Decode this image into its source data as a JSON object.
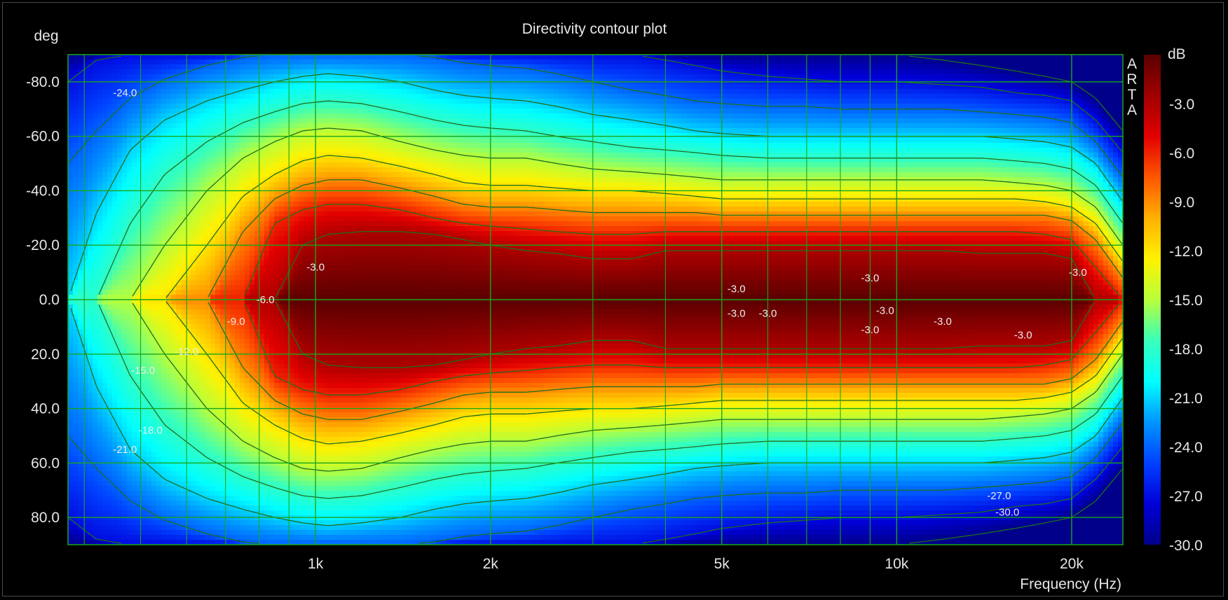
{
  "chart_data": {
    "type": "heatmap",
    "title": "Directivity contour plot",
    "ylabel": "deg",
    "xlabel": "Frequency (Hz)",
    "watermark": "ARTA",
    "x_scale": "log",
    "xlim": [
      375,
      24500
    ],
    "ylim": [
      -90,
      90
    ],
    "y_direction": "top-is-negative",
    "x_ticks": [
      {
        "value": 1000,
        "label": "1k"
      },
      {
        "value": 2000,
        "label": "2k"
      },
      {
        "value": 5000,
        "label": "5k"
      },
      {
        "value": 10000,
        "label": "10k"
      },
      {
        "value": 20000,
        "label": "20k"
      }
    ],
    "x_minor_gridlines": [
      400,
      500,
      600,
      700,
      800,
      900,
      3000,
      4000,
      6000,
      7000,
      8000,
      9000
    ],
    "y_ticks": [
      {
        "value": -80,
        "label": "-80.0"
      },
      {
        "value": -60,
        "label": "-60.0"
      },
      {
        "value": -40,
        "label": "-40.0"
      },
      {
        "value": -20,
        "label": "-20.0"
      },
      {
        "value": 0,
        "label": "0.0"
      },
      {
        "value": 20,
        "label": "20.0"
      },
      {
        "value": 40,
        "label": "40.0"
      },
      {
        "value": 60,
        "label": "60.0"
      },
      {
        "value": 80,
        "label": "80.0"
      }
    ],
    "grid": true,
    "colorbar": {
      "label": "dB",
      "range": [
        -30,
        0
      ],
      "ticks": [
        "-3.0",
        "-6.0",
        "-9.0",
        "-12.0",
        "-15.0",
        "-18.0",
        "-21.0",
        "-24.0",
        "-27.0",
        "-30.0"
      ],
      "colors": [
        "#5a0000",
        "#a00000",
        "#e20000",
        "#ff5500",
        "#ffb000",
        "#fff200",
        "#b8ff3a",
        "#38ffba",
        "#00ffff",
        "#0096ff",
        "#0040ff",
        "#0000d8",
        "#00008a"
      ]
    },
    "beamwidth_profile": {
      "description": "angle (deg) at which response falls to each contour level, per frequency",
      "freqs": [
        375,
        420,
        480,
        550,
        650,
        750,
        850,
        950,
        1050,
        1200,
        1400,
        1600,
        1800,
        2000,
        2300,
        2600,
        3000,
        3500,
        4000,
        4500,
        5000,
        6000,
        7000,
        8000,
        9000,
        10000,
        12000,
        14000,
        16000,
        18000,
        20000,
        22000,
        24500
      ],
      "levels": [
        -3,
        -6,
        -9,
        -12,
        -15,
        -18,
        -21,
        -24,
        -27,
        -30
      ],
      "angles": [
        [
          0,
          0,
          0,
          0,
          0,
          0,
          0,
          20,
          24,
          25,
          25,
          24,
          22,
          20,
          18,
          17,
          15,
          15,
          18,
          18,
          18,
          18,
          18,
          18,
          18,
          18,
          18,
          17,
          17,
          17,
          15,
          0,
          0
        ],
        [
          0,
          0,
          0,
          0,
          0,
          0,
          28,
          33,
          35,
          35,
          33,
          30,
          28,
          27,
          26,
          25,
          24,
          24,
          25,
          25,
          25,
          25,
          25,
          25,
          25,
          25,
          25,
          25,
          25,
          24,
          22,
          12,
          0
        ],
        [
          0,
          0,
          0,
          0,
          0,
          25,
          37,
          42,
          44,
          44,
          41,
          38,
          35,
          34,
          34,
          33,
          32,
          32,
          32,
          32,
          31,
          31,
          31,
          31,
          31,
          31,
          31,
          31,
          31,
          31,
          29,
          22,
          8
        ],
        [
          0,
          0,
          0,
          0,
          20,
          38,
          46,
          51,
          53,
          52,
          49,
          46,
          43,
          42,
          42,
          41,
          40,
          40,
          39,
          38,
          37,
          37,
          37,
          37,
          37,
          37,
          37,
          37,
          37,
          36,
          34,
          28,
          14
        ],
        [
          0,
          0,
          0,
          20,
          40,
          52,
          58,
          62,
          63,
          62,
          58,
          55,
          53,
          52,
          52,
          50,
          48,
          47,
          46,
          45,
          44,
          44,
          44,
          44,
          44,
          44,
          44,
          44,
          43,
          42,
          40,
          34,
          20
        ],
        [
          0,
          0,
          28,
          46,
          58,
          65,
          69,
          72,
          73,
          72,
          69,
          66,
          64,
          63,
          62,
          60,
          58,
          56,
          55,
          54,
          53,
          52,
          52,
          52,
          52,
          52,
          52,
          52,
          51,
          50,
          48,
          42,
          28
        ],
        [
          0,
          32,
          55,
          66,
          73,
          77,
          80,
          82,
          83,
          82,
          80,
          77,
          75,
          74,
          73,
          71,
          68,
          66,
          64,
          62,
          61,
          60,
          60,
          60,
          60,
          60,
          60,
          60,
          59,
          58,
          56,
          50,
          36
        ],
        [
          50,
          62,
          74,
          81,
          86,
          89,
          90,
          90,
          90,
          90,
          90,
          89,
          87,
          86,
          85,
          83,
          80,
          77,
          75,
          73,
          72,
          71,
          71,
          70,
          70,
          70,
          70,
          69,
          68,
          67,
          65,
          58,
          45
        ],
        [
          80,
          88,
          90,
          90,
          90,
          90,
          90,
          90,
          90,
          90,
          90,
          90,
          90,
          90,
          90,
          90,
          90,
          90,
          88,
          86,
          84,
          82,
          81,
          80,
          80,
          80,
          79,
          78,
          76,
          75,
          73,
          66,
          54
        ],
        [
          90,
          90,
          90,
          90,
          90,
          90,
          90,
          90,
          90,
          90,
          90,
          90,
          90,
          90,
          90,
          90,
          90,
          90,
          90,
          90,
          90,
          90,
          90,
          90,
          90,
          90,
          88,
          86,
          84,
          82,
          80,
          74,
          62
        ]
      ]
    },
    "contour_labels": [
      {
        "text": "-24.0",
        "freq": 470,
        "angle": -76
      },
      {
        "text": "-3.0",
        "freq": 1000,
        "angle": -12
      },
      {
        "text": "-6.0",
        "freq": 820,
        "angle": 0
      },
      {
        "text": "-9.0",
        "freq": 730,
        "angle": 8
      },
      {
        "text": "-12.0",
        "freq": 600,
        "angle": 19
      },
      {
        "text": "-15.0",
        "freq": 505,
        "angle": 26
      },
      {
        "text": "-18.0",
        "freq": 520,
        "angle": 48
      },
      {
        "text": "-21.0",
        "freq": 470,
        "angle": 55
      },
      {
        "text": "-3.0",
        "freq": 5300,
        "angle": -4
      },
      {
        "text": "-3.0",
        "freq": 5300,
        "angle": 5
      },
      {
        "text": "-3.0",
        "freq": 6000,
        "angle": 5
      },
      {
        "text": "-3.0",
        "freq": 9000,
        "angle": -8
      },
      {
        "text": "-3.0",
        "freq": 9550,
        "angle": 4
      },
      {
        "text": "-3.0",
        "freq": 9000,
        "angle": 11
      },
      {
        "text": "-3.0",
        "freq": 12000,
        "angle": 8
      },
      {
        "text": "-3.0",
        "freq": 16500,
        "angle": 13
      },
      {
        "text": "-3.0",
        "freq": 20500,
        "angle": -10
      },
      {
        "text": "-27.0",
        "freq": 15000,
        "angle": 72
      },
      {
        "text": "-30.0",
        "freq": 15500,
        "angle": 78
      }
    ]
  }
}
